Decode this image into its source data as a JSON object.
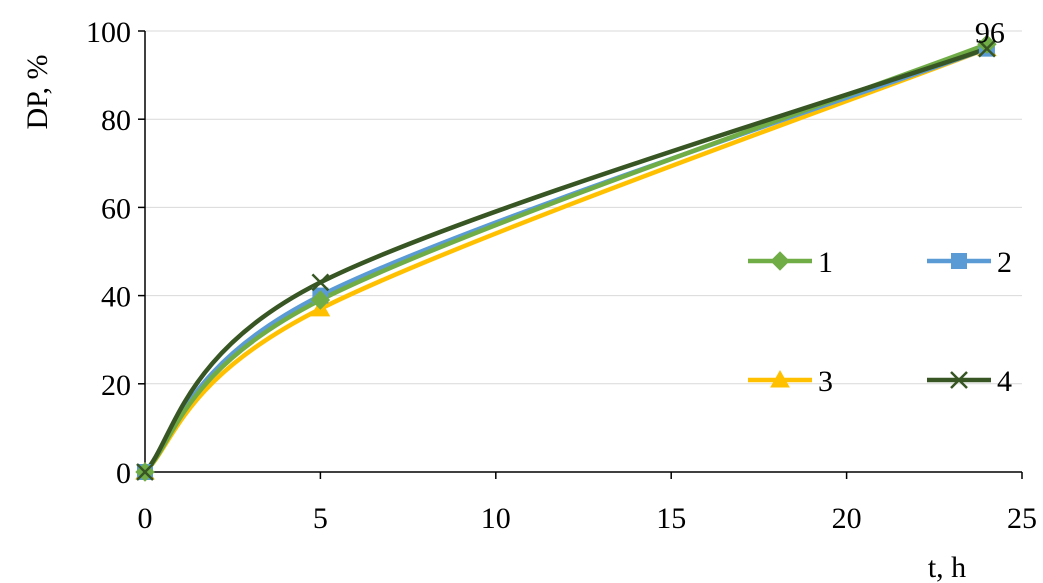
{
  "chart_data": {
    "type": "line",
    "title": "",
    "xlabel": "t, h",
    "ylabel": "DP, %",
    "xlim": [
      0,
      25
    ],
    "ylim": [
      0,
      100
    ],
    "x_ticks": [
      "0",
      "5",
      "10",
      "15",
      "20",
      "25"
    ],
    "y_ticks": [
      "0",
      "20",
      "40",
      "60",
      "80",
      "100"
    ],
    "grid": "horizontal",
    "legend": "right",
    "x": [
      0,
      5,
      24
    ],
    "series": [
      {
        "name": "1",
        "values": [
          0,
          39,
          97
        ],
        "color": "#70AD47",
        "marker": "diamond"
      },
      {
        "name": "2",
        "values": [
          0,
          40,
          96
        ],
        "color": "#5B9BD5",
        "marker": "square"
      },
      {
        "name": "3",
        "values": [
          0,
          37,
          96
        ],
        "color": "#FFC000",
        "marker": "triangle"
      },
      {
        "name": "4",
        "values": [
          0,
          43,
          96
        ],
        "color": "#375623",
        "marker": "x"
      }
    ],
    "annotations": [
      {
        "text": "96",
        "x": 24,
        "y": 96
      }
    ]
  }
}
